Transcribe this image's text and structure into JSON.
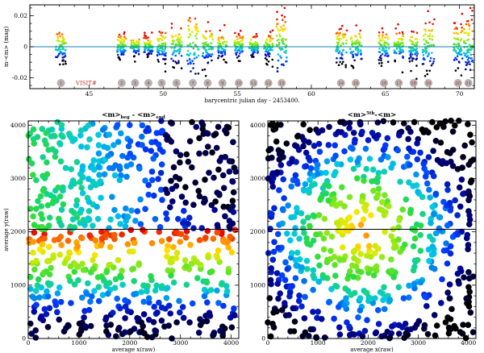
{
  "chart_data": [
    {
      "type": "scatter",
      "panel": "top",
      "title": "",
      "xlabel": "barycentric julian day - 2453400.",
      "ylabel": "m-<m> (mag)",
      "xlim": [
        41,
        71
      ],
      "ylim": [
        -0.027,
        0.027
      ],
      "xticks": [
        45,
        50,
        55,
        60,
        65,
        70
      ],
      "xtick_labels": [
        "45",
        "50",
        "55",
        "60",
        "65",
        "70"
      ],
      "yticks": [
        -0.02,
        0,
        0.02
      ],
      "ytick_labels": [
        "-0.02",
        "0",
        "0.02"
      ],
      "reference_line": 0,
      "visit_label": "VISIT#",
      "visits": [
        {
          "id": "1",
          "day": 43.1,
          "half_width": 0.35,
          "spread": 0.01
        },
        {
          "id": "2",
          "day": 47.2,
          "half_width": 0.3,
          "spread": 0.008
        },
        {
          "id": "3",
          "day": 48.1,
          "half_width": 0.3,
          "spread": 0.005
        },
        {
          "id": "4",
          "day": 49.0,
          "half_width": 0.3,
          "spread": 0.006
        },
        {
          "id": "5",
          "day": 49.9,
          "half_width": 0.3,
          "spread": 0.01
        },
        {
          "id": "6",
          "day": 50.9,
          "half_width": 0.35,
          "spread": 0.012
        },
        {
          "id": "7",
          "day": 52.0,
          "half_width": 0.4,
          "spread": 0.021
        },
        {
          "id": "8",
          "day": 53.0,
          "half_width": 0.35,
          "spread": 0.012
        },
        {
          "id": "9",
          "day": 54.0,
          "half_width": 0.3,
          "spread": 0.008
        },
        {
          "id": "10",
          "day": 55.1,
          "half_width": 0.3,
          "spread": 0.008
        },
        {
          "id": "11",
          "day": 56.1,
          "half_width": 0.3,
          "spread": 0.007
        },
        {
          "id": "12",
          "day": 57.1,
          "half_width": 0.3,
          "spread": 0.008
        },
        {
          "id": "13",
          "day": 58.0,
          "half_width": 0.35,
          "spread": 0.02
        },
        {
          "id": "14",
          "day": 62.0,
          "half_width": 0.4,
          "spread": 0.011
        },
        {
          "id": "15",
          "day": 63.0,
          "half_width": 0.4,
          "spread": 0.011
        },
        {
          "id": "16",
          "day": 64.9,
          "half_width": 0.35,
          "spread": 0.01
        },
        {
          "id": "17",
          "day": 65.9,
          "half_width": 0.3,
          "spread": 0.01
        },
        {
          "id": "18",
          "day": 66.9,
          "half_width": 0.3,
          "spread": 0.01
        },
        {
          "id": "19",
          "day": 67.9,
          "half_width": 0.4,
          "spread": 0.016
        },
        {
          "id": "20",
          "day": 69.9,
          "half_width": 0.3,
          "spread": 0.014
        },
        {
          "id": "21",
          "day": 70.6,
          "half_width": 0.3,
          "spread": 0.018
        }
      ],
      "points_per_visit": 60
    },
    {
      "type": "scatter",
      "panel": "bottom-left",
      "title": "<m>beg - <m>end",
      "title_main_a": "<m>",
      "title_sub_a": "beg",
      "title_mid": " - ",
      "title_main_b": "<m>",
      "title_sub_b": "end",
      "xlabel": "average x(raw)",
      "ylabel": "average y(raw)",
      "xlim": [
        0,
        4150
      ],
      "ylim": [
        0,
        4080
      ],
      "ticks": [
        0,
        1000,
        2000,
        3000,
        4000
      ],
      "tick_labels": [
        "0",
        "1000",
        "2000",
        "3000",
        "4000"
      ],
      "divider_y": 2048,
      "n_points": 700,
      "pattern": "red/orange band just below y=2048, blue/black toward bottom and upper-right"
    },
    {
      "type": "scatter",
      "panel": "bottom-right",
      "title": "<m>5th - <m>",
      "title_main_a": "<m>",
      "title_sup": "5th",
      "title_rest": "-<m>",
      "xlabel": "average x(raw)",
      "ylabel": "",
      "xlim": [
        0,
        4150
      ],
      "ylim": [
        0,
        4080
      ],
      "ticks": [
        0,
        1000,
        2000,
        3000,
        4000
      ],
      "tick_labels": [
        "0",
        "1000",
        "2000",
        "3000",
        "4000"
      ],
      "divider_y": 2048,
      "n_points": 700,
      "pattern": "red/yellow in center above and below divider, black in corners"
    }
  ],
  "colors": {
    "badge_fill": "#b3b3b3",
    "badge_text": "#c0392b",
    "reference_line": "#1a7fb0",
    "divider": "#000000"
  }
}
